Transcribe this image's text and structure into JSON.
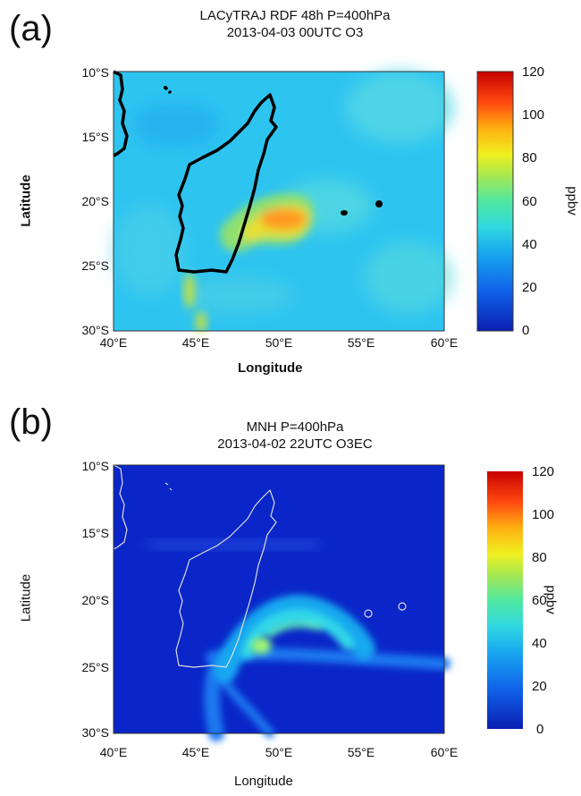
{
  "chart_data": [
    {
      "panel_label": "(a)",
      "type": "heatmap",
      "title_line1": "LACyTRAJ RDF 48h P=400hPa",
      "title_line2": "2013-04-03 00UTC O3",
      "xlabel": "Longitude",
      "ylabel": "Latitude",
      "x_ticks": [
        "40°E",
        "45°E",
        "50°E",
        "55°E",
        "60°E"
      ],
      "y_ticks": [
        "10°S",
        "15°S",
        "20°S",
        "25°S",
        "30°S"
      ],
      "xlim": [
        40,
        60
      ],
      "ylim": [
        -30,
        -10
      ],
      "colorbar": {
        "label": "ppbv",
        "ticks": [
          "120",
          "100",
          "80",
          "60",
          "40",
          "20",
          "0"
        ],
        "range": [
          0,
          120
        ]
      },
      "background_level_ppbv": 40,
      "coastline_color": "#000000",
      "features": [
        {
          "kind": "ozone_band",
          "lon": [
            47.5,
            51.5
          ],
          "lat": [
            -22.5,
            -20.0
          ],
          "peak_ppbv": 90
        },
        {
          "kind": "ozone_tongue",
          "lon": [
            44.5,
            46.5
          ],
          "lat": [
            -29.5,
            -25.0
          ],
          "peak_ppbv": 65
        }
      ]
    },
    {
      "panel_label": "(b)",
      "type": "heatmap",
      "title_line1": "MNH P=400hPa",
      "title_line2": "2013-04-02 22UTC O3EC",
      "xlabel": "Longitude",
      "ylabel": "Latitude",
      "x_ticks": [
        "40°E",
        "45°E",
        "50°E",
        "55°E",
        "60°E"
      ],
      "y_ticks": [
        "10°S",
        "15°S",
        "20°S",
        "25°S",
        "30°S"
      ],
      "xlim": [
        40,
        60
      ],
      "ylim": [
        -30,
        -10
      ],
      "colorbar": {
        "label": "ppbv",
        "ticks": [
          "120",
          "100",
          "80",
          "60",
          "40",
          "20",
          "0"
        ],
        "range": [
          0,
          120
        ]
      },
      "background_level_ppbv": 5,
      "coastline_color": "#dcdcdc",
      "features": [
        {
          "kind": "ozone_plume_arc",
          "lon": [
            48.5,
            53.0
          ],
          "lat": [
            -24.5,
            -20.0
          ],
          "peak_ppbv": 60
        },
        {
          "kind": "ozone_streamer",
          "lon": [
            45.5,
            60.0
          ],
          "lat": [
            -30.0,
            -24.0
          ],
          "peak_ppbv": 30
        }
      ]
    }
  ]
}
